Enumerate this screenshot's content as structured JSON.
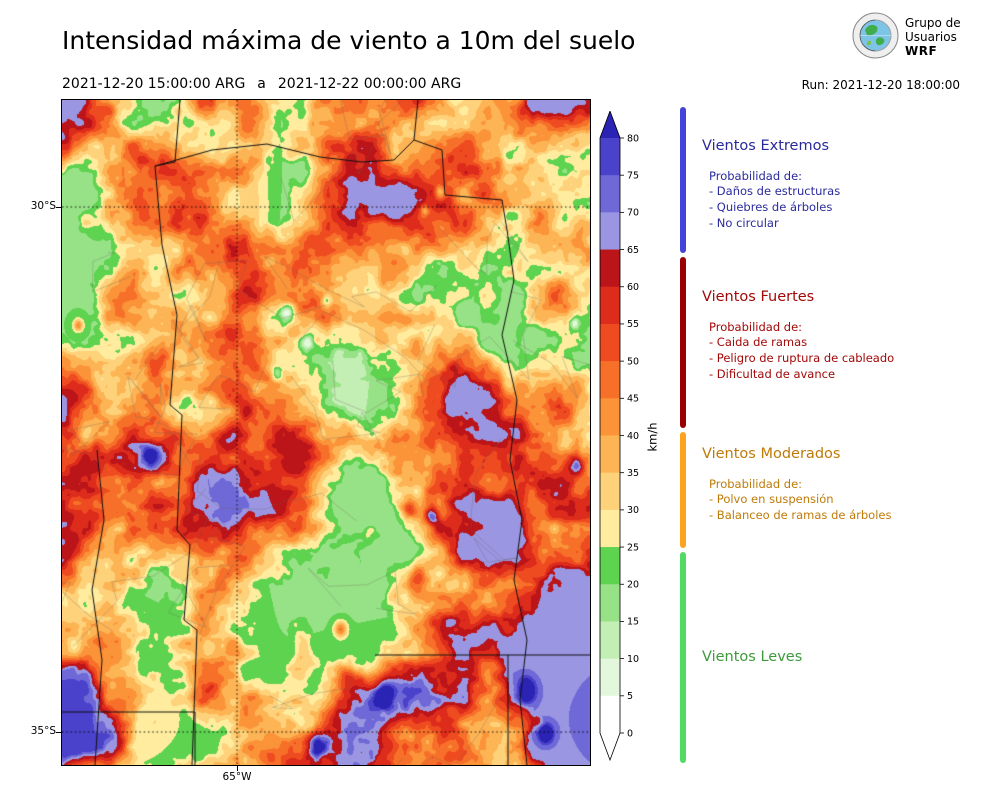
{
  "header": {
    "title": "Intensidad máxima de viento a 10m del suelo",
    "date_start": "2021-12-20 15:00:00 ARG",
    "date_sep": "a",
    "date_end": "2021-12-22 00:00:00 ARG",
    "run_label": "Run: 2021-12-20 18:00:00",
    "logo": {
      "line1": "Grupo de",
      "line2": "Usuarios",
      "line3": "WRF"
    }
  },
  "map": {
    "lat_ticks": [
      "30°S",
      "35°S"
    ],
    "lon_ticks": [
      "65°W"
    ]
  },
  "colorbar": {
    "unit": "km/h",
    "ticks": [
      0,
      5,
      10,
      15,
      20,
      25,
      30,
      35,
      40,
      45,
      50,
      55,
      60,
      65,
      70,
      75,
      80
    ],
    "band_colors": [
      "#ffffff",
      "#e3f7dc",
      "#c3eeb4",
      "#97e287",
      "#5ed350",
      "#ffec9e",
      "#fed27a",
      "#fdb454",
      "#fb9339",
      "#f7702a",
      "#ef4b20",
      "#dd2c1c",
      "#bb1419",
      "#9a96e2",
      "#6f68d7",
      "#4a42cb"
    ],
    "over_color": "#2a23b4",
    "under_color": "#ffffff"
  },
  "legend": {
    "sections": [
      {
        "name": "extremos",
        "title": "Vientos Extremos",
        "color": "#2a2a9d",
        "bar_color": "#4444d9",
        "prob_label": "Probabilidad de:",
        "items": [
          "- Daños de estructuras",
          "- Quiebres de árboles",
          "- No circular"
        ]
      },
      {
        "name": "fuertes",
        "title": "Vientos Fuertes",
        "color": "#a30808",
        "bar_color": "#990000",
        "prob_label": "Probabilidad de:",
        "items": [
          "- Caida de ramas",
          "- Peligro de ruptura de cableado",
          "- Dificultad de avance"
        ]
      },
      {
        "name": "moderados",
        "title": "Vientos Moderados",
        "color": "#bf7b08",
        "bar_color": "#ffa21f",
        "prob_label": "Probabilidad de:",
        "items": [
          "- Polvo en suspensión",
          "- Balanceo de ramas de árboles"
        ]
      },
      {
        "name": "leves",
        "title": "Vientos Leves",
        "color": "#3c9a3c",
        "bar_color": "#52da63",
        "prob_label": "",
        "items": []
      }
    ]
  },
  "chart_data": {
    "type": "heatmap",
    "title": "Intensidad máxima de viento a 10m del suelo",
    "time_start": "2021-12-20 15:00:00 ARG",
    "time_end": "2021-12-22 00:00:00 ARG",
    "model_run": "Run: 2021-12-20 18:00:00",
    "unit": "km/h",
    "colorbar_ticks": [
      0,
      5,
      10,
      15,
      20,
      25,
      30,
      35,
      40,
      45,
      50,
      55,
      60,
      65,
      70,
      75,
      80
    ],
    "colorbar_range": [
      0,
      80
    ],
    "colorbar_extend": "both",
    "lat_ticks": [
      "30°S",
      "35°S"
    ],
    "lon_ticks": [
      "65°W"
    ],
    "categories": [
      {
        "label": "Vientos Leves",
        "min_kmh": 0,
        "max_kmh": 25,
        "color": "#52da63",
        "effects": []
      },
      {
        "label": "Vientos Moderados",
        "min_kmh": 25,
        "max_kmh": 40,
        "color": "#ffa21f",
        "effects": [
          "Polvo en suspensión",
          "Balanceo de ramas de árboles"
        ]
      },
      {
        "label": "Vientos Fuertes",
        "min_kmh": 40,
        "max_kmh": 65,
        "color": "#990000",
        "effects": [
          "Caida de ramas",
          "Peligro de ruptura de cableado",
          "Dificultad de avance"
        ]
      },
      {
        "label": "Vientos Extremos",
        "min_kmh": 65,
        "max_kmh": null,
        "color": "#4444d9",
        "effects": [
          "Daños de estructuras",
          "Quiebres de árboles",
          "No circular"
        ]
      }
    ],
    "field_description": "Filled-contour map of maximum 10 m wind speed over central Argentina: mostly 30-55 km/h (orange/red), ridge-like maxima 55-65 km/h (dark red), localized spots above 65 km/h (blue/purple) and small areas below 25 km/h (green/yellow)."
  }
}
